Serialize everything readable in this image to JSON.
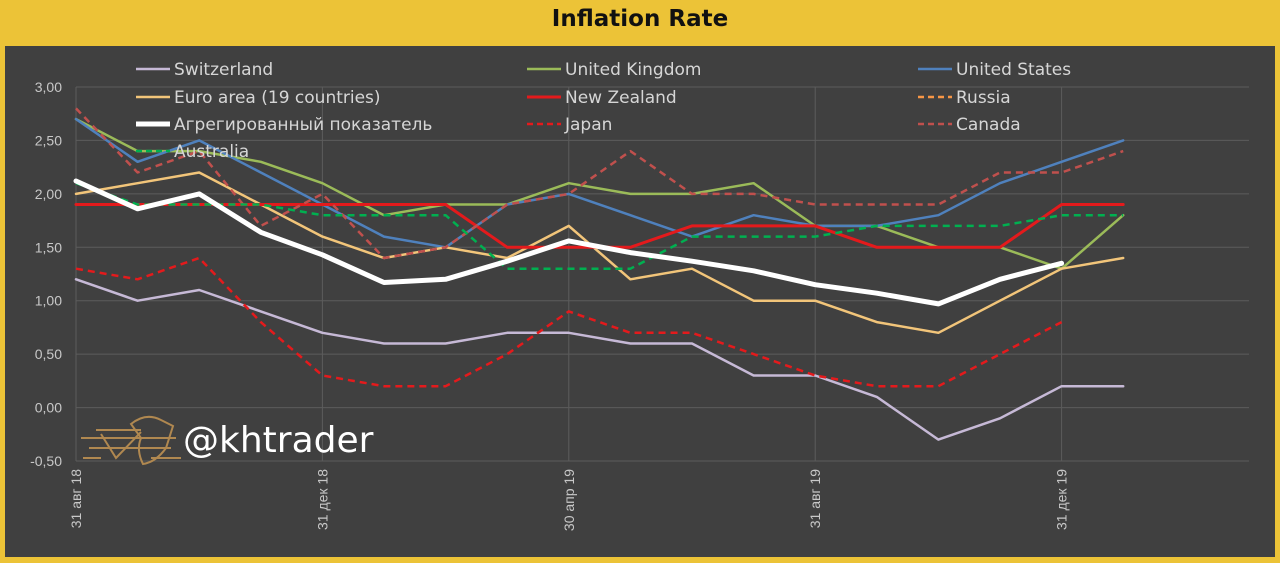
{
  "chart_data": {
    "type": "line",
    "title": "Inflation Rate",
    "xlabel": "",
    "ylabel": "",
    "ylim": [
      -0.5,
      3.0
    ],
    "yticks": [
      -0.5,
      0.0,
      0.5,
      1.0,
      1.5,
      2.0,
      2.5,
      3.0
    ],
    "ytick_labels": [
      "-0,50",
      "0,00",
      "0,50",
      "1,00",
      "1,50",
      "2,00",
      "2,50",
      "3,00"
    ],
    "x_count": 18,
    "xticks": [
      {
        "index": 0,
        "label": "31 авг 18"
      },
      {
        "index": 4,
        "label": "31 дек 18"
      },
      {
        "index": 8,
        "label": "30 апр 19"
      },
      {
        "index": 12,
        "label": "31 авг 19"
      },
      {
        "index": 16,
        "label": "31 дек 19"
      }
    ],
    "grid": true,
    "legend_position": "top",
    "series": [
      {
        "name": "Switzerland",
        "color": "#c6b9d6",
        "style": "solid",
        "width": 2.5,
        "values": [
          1.2,
          1.0,
          1.1,
          0.9,
          0.7,
          0.6,
          0.6,
          0.7,
          0.7,
          0.6,
          0.6,
          0.3,
          0.3,
          0.1,
          -0.3,
          -0.1,
          0.2,
          0.2
        ]
      },
      {
        "name": "United Kingdom",
        "color": "#9bbb59",
        "style": "solid",
        "width": 2.5,
        "values": [
          2.7,
          2.4,
          2.4,
          2.3,
          2.1,
          1.8,
          1.9,
          1.9,
          2.1,
          2.0,
          2.0,
          2.1,
          1.7,
          1.7,
          1.5,
          1.5,
          1.3,
          1.8
        ]
      },
      {
        "name": "United States",
        "color": "#4f81bd",
        "style": "solid",
        "width": 2.5,
        "values": [
          2.7,
          2.3,
          2.5,
          2.2,
          1.9,
          1.6,
          1.5,
          1.9,
          2.0,
          1.8,
          1.6,
          1.8,
          1.7,
          1.7,
          1.8,
          2.1,
          2.3,
          2.5
        ]
      },
      {
        "name": "Euro area (19 countries)",
        "color": "#f2c57a",
        "style": "solid",
        "width": 2.5,
        "values": [
          2.0,
          2.1,
          2.2,
          1.9,
          1.6,
          1.4,
          1.5,
          1.4,
          1.7,
          1.2,
          1.3,
          1.0,
          1.0,
          0.8,
          0.7,
          1.0,
          1.3,
          1.4
        ]
      },
      {
        "name": "New Zealand",
        "color": "#e41a1c",
        "style": "solid",
        "width": 3,
        "values": [
          1.9,
          1.9,
          1.9,
          1.9,
          1.9,
          1.9,
          1.9,
          1.5,
          1.5,
          1.5,
          1.7,
          1.7,
          1.7,
          1.5,
          1.5,
          1.5,
          1.9,
          1.9
        ]
      },
      {
        "name": "Russia",
        "color": "#f79646",
        "style": "dashed",
        "width": 2.5,
        "values": [
          null,
          null,
          null,
          null,
          null,
          null,
          null,
          null,
          null,
          null,
          null,
          null,
          null,
          null,
          null,
          null,
          null,
          null
        ]
      },
      {
        "name": "Агрегированный показатель",
        "color": "#ffffff",
        "style": "solid",
        "width": 5,
        "values": [
          2.12,
          1.86,
          2.0,
          1.64,
          1.43,
          1.17,
          1.2,
          1.37,
          1.56,
          1.45,
          1.37,
          1.28,
          1.15,
          1.07,
          0.97,
          1.2,
          1.35,
          null
        ]
      },
      {
        "name": "Japan",
        "color": "#e41a1c",
        "style": "dashed",
        "width": 2.5,
        "values": [
          1.3,
          1.2,
          1.4,
          0.8,
          0.3,
          0.2,
          0.2,
          0.5,
          0.9,
          0.7,
          0.7,
          0.5,
          0.3,
          0.2,
          0.2,
          0.5,
          0.8,
          null
        ]
      },
      {
        "name": "Canada",
        "color": "#c0504d",
        "style": "dashed",
        "width": 2.5,
        "values": [
          2.8,
          2.2,
          2.4,
          1.7,
          2.0,
          1.4,
          1.5,
          1.9,
          2.0,
          2.4,
          2.0,
          2.0,
          1.9,
          1.9,
          1.9,
          2.2,
          2.2,
          2.4
        ]
      },
      {
        "name": "Australia",
        "color": "#00b050",
        "style": "dashed",
        "width": 2.5,
        "values": [
          2.1,
          1.9,
          1.9,
          1.9,
          1.8,
          1.8,
          1.8,
          1.3,
          1.3,
          1.3,
          1.6,
          1.6,
          1.6,
          1.7,
          1.7,
          1.7,
          1.8,
          1.8
        ]
      }
    ]
  },
  "watermark": {
    "text": "@khtrader"
  }
}
